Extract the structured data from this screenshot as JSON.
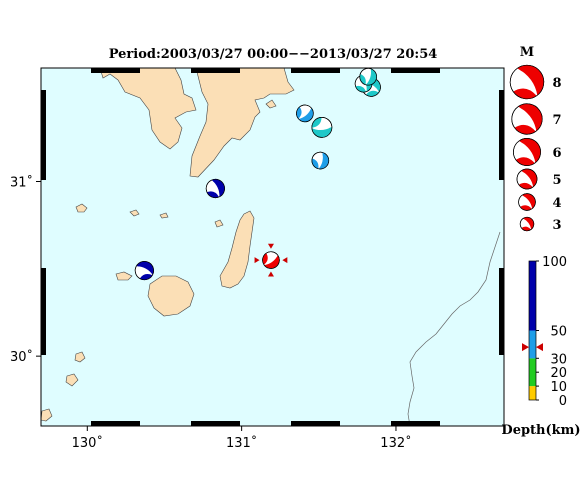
{
  "title": "Period:2003/03/27 00:00−−2013/03/27 20:54",
  "lon_ticks": [
    {
      "lon": 130,
      "label": "130˚"
    },
    {
      "lon": 131,
      "label": "131˚"
    },
    {
      "lon": 132,
      "label": "132˚"
    }
  ],
  "lat_ticks": [
    {
      "lat": 31,
      "label": "31˚"
    },
    {
      "lat": 30,
      "label": "30˚"
    }
  ],
  "extent": {
    "lon_min": 129.7,
    "lon_max": 132.7,
    "lat_min": 29.6,
    "lat_max": 31.65
  },
  "colors": {
    "sea": "#dffdff",
    "land": "#fbdfb6",
    "mechanism_red": "#ee0000",
    "deep_blue": "#0000aa",
    "mid_blue": "#1e9ee8",
    "cyan": "#1ec8c8",
    "green": "#22cc22",
    "yellow": "#ffcc00"
  },
  "events": [
    {
      "lon": 130.37,
      "lat": 30.49,
      "mag": 4.5,
      "depth_color": "deep_blue"
    },
    {
      "lon": 130.83,
      "lat": 30.96,
      "mag": 4.5,
      "depth_color": "deep_blue"
    },
    {
      "lon": 131.51,
      "lat": 31.12,
      "mag": 4.0,
      "depth_color": "mid_blue"
    },
    {
      "lon": 131.41,
      "lat": 31.39,
      "mag": 4.0,
      "depth_color": "mid_blue"
    },
    {
      "lon": 131.52,
      "lat": 31.31,
      "mag": 5.0,
      "depth_color": "cyan"
    },
    {
      "lon": 131.84,
      "lat": 31.54,
      "mag": 4.5,
      "depth_color": "cyan"
    },
    {
      "lon": 131.79,
      "lat": 31.56,
      "mag": 4.0,
      "depth_color": "cyan"
    },
    {
      "lon": 131.82,
      "lat": 31.6,
      "mag": 4.0,
      "depth_color": "cyan"
    },
    {
      "lon": 131.19,
      "lat": 30.55,
      "mag": 4.0,
      "depth_color": "mechanism_red",
      "selected": true
    }
  ],
  "magnitude_legend": {
    "title": "M",
    "items": [
      {
        "label": "8",
        "mag": 8
      },
      {
        "label": "7",
        "mag": 7
      },
      {
        "label": "6",
        "mag": 6
      },
      {
        "label": "5",
        "mag": 5
      },
      {
        "label": "4",
        "mag": 4
      },
      {
        "label": "3",
        "mag": 3
      }
    ]
  },
  "depth_colorbar": {
    "title": "Depth(km)",
    "ticks": [
      {
        "label": "100",
        "value": 100
      },
      {
        "label": "50",
        "value": 50
      },
      {
        "label": "30",
        "value": 30
      },
      {
        "label": "20",
        "value": 20
      },
      {
        "label": "10",
        "value": 10
      },
      {
        "label": "0",
        "value": 0
      }
    ],
    "marker_depth": 38
  }
}
